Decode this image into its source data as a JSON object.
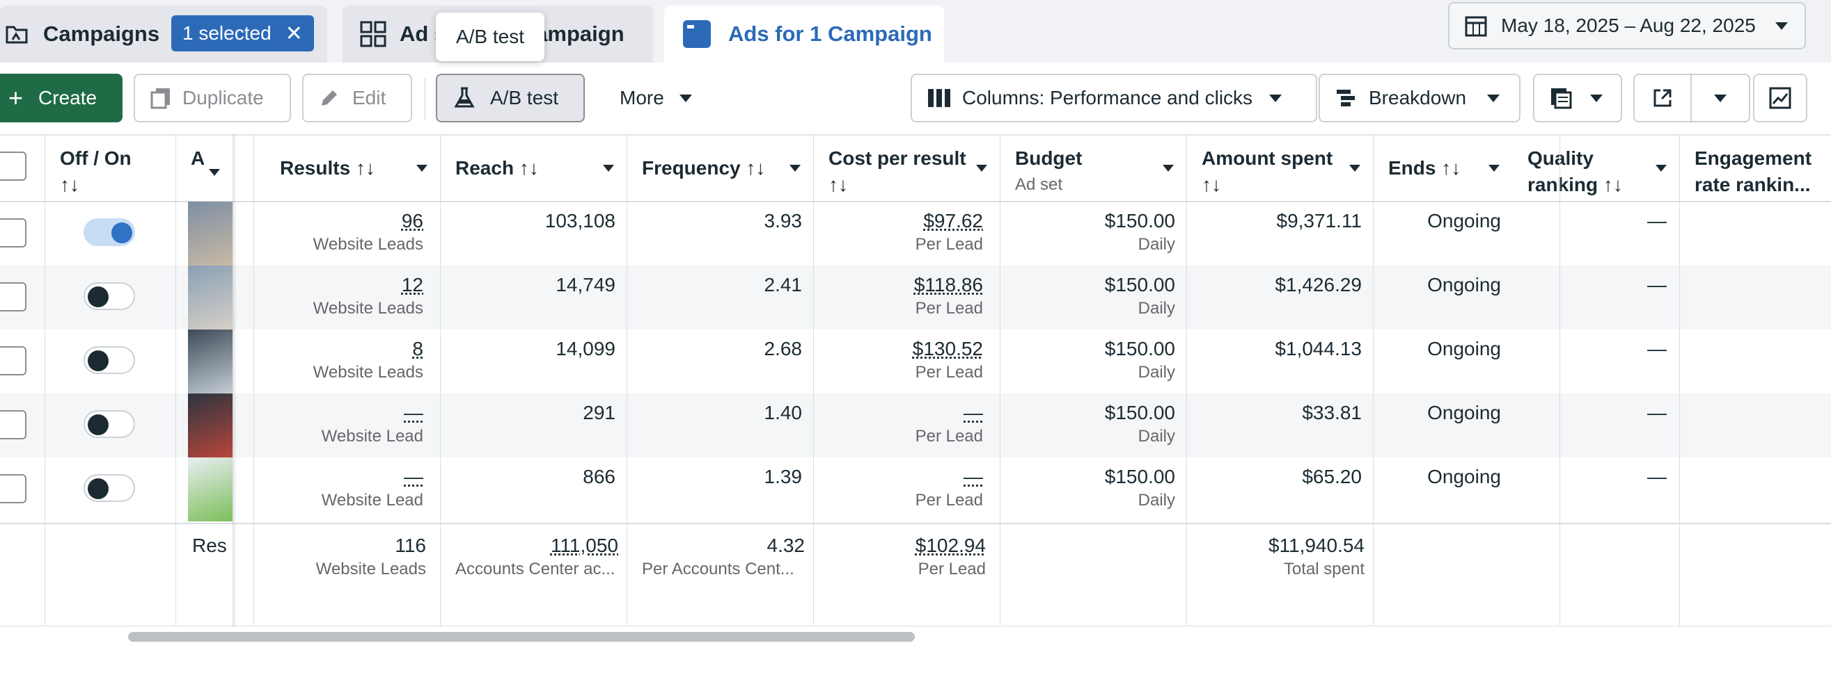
{
  "tabs": {
    "campaigns": {
      "label": "Campaigns",
      "selected_chip": "1 selected"
    },
    "adsets": {
      "label_left": "Ad s",
      "label_right": "ampaign"
    },
    "ads": {
      "label": "Ads for 1 Campaign"
    }
  },
  "date_range": "May 18, 2025 – Aug 22, 2025",
  "tooltip": "A/B test",
  "toolbar": {
    "create": "Create",
    "duplicate": "Duplicate",
    "edit": "Edit",
    "abtest": "A/B test",
    "more": "More",
    "columns": "Columns: Performance and clicks",
    "breakdown": "Breakdown"
  },
  "columns": {
    "offon": "Off / On",
    "offon_sort": "↑↓",
    "ad": "A",
    "results": "Results ↑↓",
    "reach": "Reach ↑↓",
    "frequency": "Frequency ↑↓",
    "cpr": "Cost per result",
    "cpr_sort": "↑↓",
    "budget": "Budget",
    "budget_sub": "Ad set",
    "spent": "Amount spent",
    "spent_sort": "↑↓",
    "ends": "Ends ↑↓",
    "quality": "Quality",
    "quality_sub": "ranking ↑↓",
    "engagement": "Engagement",
    "engagement_sub": "rate rankin..."
  },
  "rows": [
    {
      "on": true,
      "results": "96",
      "results_sub": "Website Leads",
      "reach": "103,108",
      "frequency": "3.93",
      "cpr": "$97.62",
      "cpr_sub": "Per Lead",
      "budget": "$150.00",
      "budget_sub": "Daily",
      "spent": "$9,371.11",
      "ends": "Ongoing",
      "quality": "—"
    },
    {
      "on": false,
      "results": "12",
      "results_sub": "Website Leads",
      "reach": "14,749",
      "frequency": "2.41",
      "cpr": "$118.86",
      "cpr_sub": "Per Lead",
      "budget": "$150.00",
      "budget_sub": "Daily",
      "spent": "$1,426.29",
      "ends": "Ongoing",
      "quality": "—"
    },
    {
      "on": false,
      "results": "8",
      "results_sub": "Website Leads",
      "reach": "14,099",
      "frequency": "2.68",
      "cpr": "$130.52",
      "cpr_sub": "Per Lead",
      "budget": "$150.00",
      "budget_sub": "Daily",
      "spent": "$1,044.13",
      "ends": "Ongoing",
      "quality": "—"
    },
    {
      "on": false,
      "results": "—",
      "results_sub": "Website Lead",
      "reach": "291",
      "frequency": "1.40",
      "cpr": "—",
      "cpr_sub": "Per Lead",
      "budget": "$150.00",
      "budget_sub": "Daily",
      "spent": "$33.81",
      "ends": "Ongoing",
      "quality": "—"
    },
    {
      "on": false,
      "results": "—",
      "results_sub": "Website Lead",
      "reach": "866",
      "frequency": "1.39",
      "cpr": "—",
      "cpr_sub": "Per Lead",
      "budget": "$150.00",
      "budget_sub": "Daily",
      "spent": "$65.20",
      "ends": "Ongoing",
      "quality": "—"
    }
  ],
  "totals": {
    "label": "Res",
    "results": "116",
    "results_sub": "Website Leads",
    "reach": "111,050",
    "reach_sub": "Accounts Center ac...",
    "frequency": "4.32",
    "frequency_sub": "Per Accounts Cent...",
    "cpr": "$102.94",
    "cpr_sub": "Per Lead",
    "spent": "$11,940.54",
    "spent_sub": "Total spent"
  },
  "colors": {
    "create_green": "#1f6b45",
    "accent_blue": "#2c6ab8",
    "toggle_on": "#2f72c6"
  }
}
